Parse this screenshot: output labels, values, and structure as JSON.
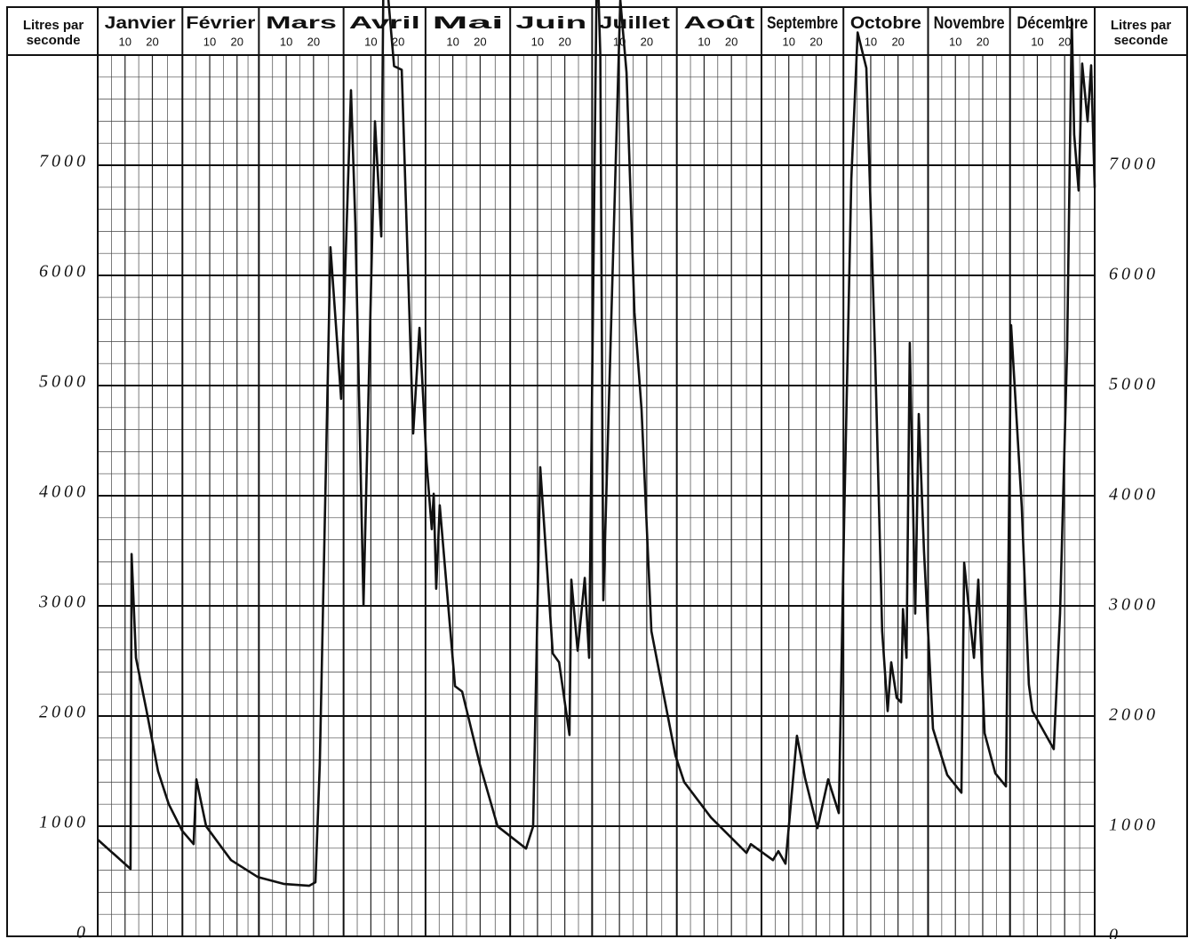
{
  "chart_data": {
    "type": "line",
    "y_label": "Litres par seconde",
    "y2_label": "Litres par seconde",
    "x_categories": [
      "Janvier",
      "Février",
      "Mars",
      "Avril",
      "Mai",
      "Juin",
      "Juillet",
      "Août",
      "Septembre",
      "Octobre",
      "Novembre",
      "Décembre"
    ],
    "xlim": [
      0,
      365
    ],
    "xticks": [
      {
        "value": 10,
        "label": "10"
      },
      {
        "value": 20,
        "label": "20"
      },
      {
        "value": 41,
        "label": "10"
      },
      {
        "value": 51,
        "label": "20"
      },
      {
        "value": 69,
        "label": "10"
      },
      {
        "value": 79,
        "label": "20"
      },
      {
        "value": 100,
        "label": "10"
      },
      {
        "value": 110,
        "label": "20"
      },
      {
        "value": 130,
        "label": "10"
      },
      {
        "value": 140,
        "label": "20"
      },
      {
        "value": 161,
        "label": "10"
      },
      {
        "value": 171,
        "label": "20"
      },
      {
        "value": 191,
        "label": "10"
      },
      {
        "value": 201,
        "label": "20"
      },
      {
        "value": 222,
        "label": "10"
      },
      {
        "value": 232,
        "label": "20"
      },
      {
        "value": 253,
        "label": "10"
      },
      {
        "value": 263,
        "label": "20"
      },
      {
        "value": 283,
        "label": "10"
      },
      {
        "value": 293,
        "label": "20"
      },
      {
        "value": 314,
        "label": "10"
      },
      {
        "value": 324,
        "label": "20"
      },
      {
        "value": 344,
        "label": "10"
      },
      {
        "value": 354,
        "label": "20"
      }
    ],
    "ylim": [
      0,
      8000
    ],
    "yticks": [
      0,
      1000,
      2000,
      3000,
      4000,
      5000,
      6000,
      7000
    ],
    "y2lim": [
      0,
      8000
    ],
    "y2ticks": [
      0,
      1000,
      2000,
      3000,
      4000,
      5000,
      6000,
      7000
    ],
    "grid": true,
    "color": "#111111",
    "x": [
      0,
      12,
      12.4,
      14,
      17.9,
      22.1,
      26,
      30.9,
      35.1,
      36.1,
      39.7,
      48.8,
      58.6,
      68.3,
      77.4,
      79.7,
      81.3,
      85.2,
      89.1,
      92.7,
      94.3,
      97.3,
      101.5,
      103.8,
      104.7,
      108.5,
      111.3,
      115.5,
      117.8,
      120.4,
      122.3,
      123,
      123.9,
      125.2,
      130.8,
      133.4,
      139.9,
      146.4,
      156.8,
      159.4,
      162,
      166.6,
      168.9,
      172.7,
      173.4,
      175.7,
      178.3,
      179.9,
      182.8,
      184,
      185.1,
      191.3,
      193.6,
      196.5,
      199.1,
      202.7,
      211.5,
      214.7,
      224.5,
      237.5,
      239.1,
      247.2,
      249.2,
      251.8,
      256,
      258.9,
      263.5,
      267.4,
      271.3,
      273.3,
      275.9,
      278.2,
      281.4,
      284.6,
      287.2,
      289.2,
      290.5,
      292.5,
      294.1,
      294.8,
      296.1,
      297.3,
      299.3,
      300.6,
      302.5,
      305.8,
      311,
      316.2,
      317.2,
      320.8,
      322.4,
      324.7,
      328.6,
      332.5,
      334.4,
      338.3,
      340.9,
      342.2,
      350,
      352.3,
      354.9,
      356.6,
      357.5,
      359.1,
      360.4,
      362.4,
      363.7,
      365
    ],
    "values": [
      878,
      612,
      3470,
      2528,
      2045,
      1498,
      1200,
      958,
      837,
      1425,
      998,
      692,
      539,
      475,
      459,
      491,
      1562,
      6256,
      4879,
      7681,
      6473,
      3011,
      7399,
      6353,
      9000,
      7900,
      7866,
      4565,
      5523,
      4300,
      3696,
      4018,
      3156,
      3913,
      2271,
      2222,
      1562,
      998,
      797,
      998,
      4259,
      2568,
      2488,
      1828,
      3237,
      2593,
      3253,
      2528,
      9000,
      8003,
      3052,
      8500,
      7842,
      5668,
      4783,
      2770,
      1643,
      1401,
      1079,
      757,
      837,
      692,
      773,
      660,
      1820,
      1441,
      982,
      1425,
      1119,
      3816,
      6876,
      8205,
      7882,
      5266,
      2770,
      2045,
      2488,
      2166,
      2126,
      2971,
      2528,
      5386,
      2931,
      4742,
      3494,
      1884,
      1465,
      1304,
      3390,
      2528,
      3237,
      1844,
      1481,
      1361,
      5548,
      3897,
      2287,
      2045,
      1699,
      2931,
      5346,
      8325,
      7279,
      6771,
      7923,
      7399,
      7907,
      6795
    ]
  }
}
